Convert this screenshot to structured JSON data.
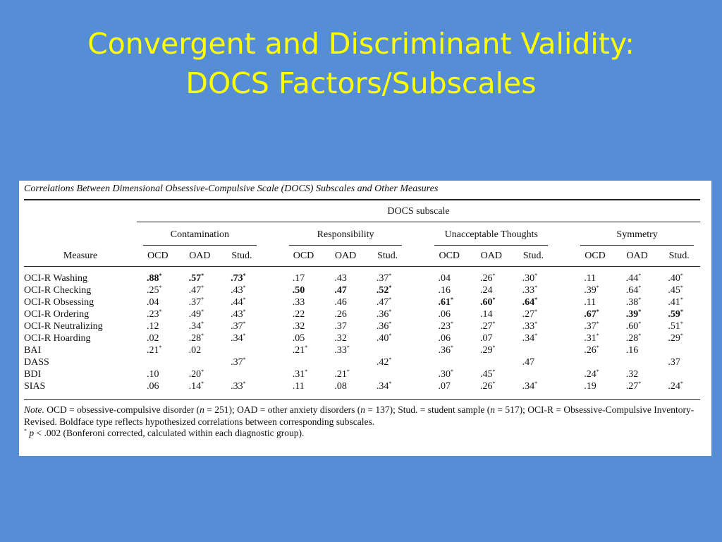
{
  "slide": {
    "title_line1": "Convergent and Discriminant Validity:",
    "title_line2": "DOCS Factors/Subscales"
  },
  "table": {
    "caption": "Correlations Between Dimensional Obsessive-Compulsive Scale (DOCS) Subscales and Other Measures",
    "super_header": "DOCS subscale",
    "measure_header": "Measure",
    "groups": [
      "Contamination",
      "Responsibility",
      "Unacceptable Thoughts",
      "Symmetry"
    ],
    "sub_headers": [
      "OCD",
      "OAD",
      "Stud."
    ],
    "rows": [
      {
        "label": "OCI-R Washing",
        "cells": [
          {
            "v": ".88",
            "s": "*",
            "b": true
          },
          {
            "v": ".57",
            "s": "*",
            "b": true
          },
          {
            "v": ".73",
            "s": "*",
            "b": true
          },
          {
            "v": ".17"
          },
          {
            "v": ".43"
          },
          {
            "v": ".37",
            "s": "*"
          },
          {
            "v": ".04"
          },
          {
            "v": ".26",
            "s": "*"
          },
          {
            "v": ".30",
            "s": "*"
          },
          {
            "v": ".11"
          },
          {
            "v": ".44",
            "s": "*"
          },
          {
            "v": ".40",
            "s": "*"
          }
        ]
      },
      {
        "label": "OCI-R Checking",
        "cells": [
          {
            "v": ".25",
            "s": "*"
          },
          {
            "v": ".47",
            "s": "*"
          },
          {
            "v": ".43",
            "s": "*"
          },
          {
            "v": ".50",
            "b": true
          },
          {
            "v": ".47",
            "b": true
          },
          {
            "v": ".52",
            "s": "*",
            "b": true
          },
          {
            "v": ".16"
          },
          {
            "v": ".24"
          },
          {
            "v": ".33",
            "s": "*"
          },
          {
            "v": ".39",
            "s": "*"
          },
          {
            "v": ".64",
            "s": "*"
          },
          {
            "v": ".45",
            "s": "*"
          }
        ]
      },
      {
        "label": "OCI-R Obsessing",
        "cells": [
          {
            "v": ".04"
          },
          {
            "v": ".37",
            "s": "*"
          },
          {
            "v": ".44",
            "s": "*"
          },
          {
            "v": ".33"
          },
          {
            "v": ".46"
          },
          {
            "v": ".47",
            "s": "*"
          },
          {
            "v": ".61",
            "s": "*",
            "b": true
          },
          {
            "v": ".60",
            "s": "*",
            "b": true
          },
          {
            "v": ".64",
            "s": "*",
            "b": true
          },
          {
            "v": ".11"
          },
          {
            "v": ".38",
            "s": "*"
          },
          {
            "v": ".41",
            "s": "*"
          }
        ]
      },
      {
        "label": "OCI-R Ordering",
        "cells": [
          {
            "v": ".23",
            "s": "*"
          },
          {
            "v": ".49",
            "s": "*"
          },
          {
            "v": ".43",
            "s": "*"
          },
          {
            "v": ".22"
          },
          {
            "v": ".26"
          },
          {
            "v": ".36",
            "s": "*"
          },
          {
            "v": ".06"
          },
          {
            "v": ".14"
          },
          {
            "v": ".27",
            "s": "*"
          },
          {
            "v": ".67",
            "s": "*",
            "b": true
          },
          {
            "v": ".39",
            "s": "*",
            "b": true
          },
          {
            "v": ".59",
            "s": "*",
            "b": true
          }
        ]
      },
      {
        "label": "OCI-R Neutralizing",
        "cells": [
          {
            "v": ".12"
          },
          {
            "v": ".34",
            "s": "*"
          },
          {
            "v": ".37",
            "s": "*"
          },
          {
            "v": ".32"
          },
          {
            "v": ".37"
          },
          {
            "v": ".36",
            "s": "*"
          },
          {
            "v": ".23",
            "s": "*"
          },
          {
            "v": ".27",
            "s": "*"
          },
          {
            "v": ".33",
            "s": "*"
          },
          {
            "v": ".37",
            "s": "*"
          },
          {
            "v": ".60",
            "s": "*"
          },
          {
            "v": ".51",
            "s": "*"
          }
        ]
      },
      {
        "label": "OCI-R Hoarding",
        "cells": [
          {
            "v": ".02"
          },
          {
            "v": ".28",
            "s": "*"
          },
          {
            "v": ".34",
            "s": "*"
          },
          {
            "v": ".05"
          },
          {
            "v": ".32"
          },
          {
            "v": ".40",
            "s": "*"
          },
          {
            "v": ".06"
          },
          {
            "v": ".07"
          },
          {
            "v": ".34",
            "s": "*"
          },
          {
            "v": ".31",
            "s": "*"
          },
          {
            "v": ".28",
            "s": "*"
          },
          {
            "v": ".29",
            "s": "*"
          }
        ]
      },
      {
        "label": "BAI",
        "cells": [
          {
            "v": ".21",
            "s": "*"
          },
          {
            "v": ".02"
          },
          {
            "v": ""
          },
          {
            "v": ".21",
            "s": "*"
          },
          {
            "v": ".33",
            "s": "*"
          },
          {
            "v": ""
          },
          {
            "v": ".36",
            "s": "*"
          },
          {
            "v": ".29",
            "s": "*"
          },
          {
            "v": ""
          },
          {
            "v": ".26",
            "s": "*"
          },
          {
            "v": ".16"
          },
          {
            "v": ""
          }
        ]
      },
      {
        "label": "DASS",
        "cells": [
          {
            "v": ""
          },
          {
            "v": ""
          },
          {
            "v": ".37",
            "s": "*"
          },
          {
            "v": ""
          },
          {
            "v": ""
          },
          {
            "v": ".42",
            "s": "*"
          },
          {
            "v": ""
          },
          {
            "v": ""
          },
          {
            "v": ".47"
          },
          {
            "v": ""
          },
          {
            "v": ""
          },
          {
            "v": ".37"
          }
        ]
      },
      {
        "label": "BDI",
        "cells": [
          {
            "v": ".10"
          },
          {
            "v": ".20",
            "s": "*"
          },
          {
            "v": ""
          },
          {
            "v": ".31",
            "s": "*"
          },
          {
            "v": ".21",
            "s": "*"
          },
          {
            "v": ""
          },
          {
            "v": ".30",
            "s": "*"
          },
          {
            "v": ".45",
            "s": "*"
          },
          {
            "v": ""
          },
          {
            "v": ".24",
            "s": "*"
          },
          {
            "v": ".32"
          },
          {
            "v": ""
          }
        ]
      },
      {
        "label": "SIAS",
        "cells": [
          {
            "v": ".06"
          },
          {
            "v": ".14",
            "s": "*"
          },
          {
            "v": ".33",
            "s": "*"
          },
          {
            "v": ".11"
          },
          {
            "v": ".08"
          },
          {
            "v": ".34",
            "s": "*"
          },
          {
            "v": ".07"
          },
          {
            "v": ".26",
            "s": "*"
          },
          {
            "v": ".34",
            "s": "*"
          },
          {
            "v": ".19"
          },
          {
            "v": ".27",
            "s": "*"
          },
          {
            "v": ".24",
            "s": "*"
          }
        ]
      }
    ],
    "note": {
      "label": "Note.",
      "p1": "OCD = obsessive-compulsive disorder (",
      "n1": "n",
      "p2": " = 251); OAD = other anxiety disorders (",
      "n2": "n",
      "p3": " = 137); Stud. = student sample (",
      "n3": "n",
      "p4": " = 517); OCI-R = Obsessive-Compulsive Inventory-Revised. Boldface type reflects hypothesized correlations between corresponding subscales.",
      "star": "*",
      "p_sym": "p",
      "p5": " < .002 (Bonferoni corrected, calculated within each diagnostic group)."
    }
  }
}
